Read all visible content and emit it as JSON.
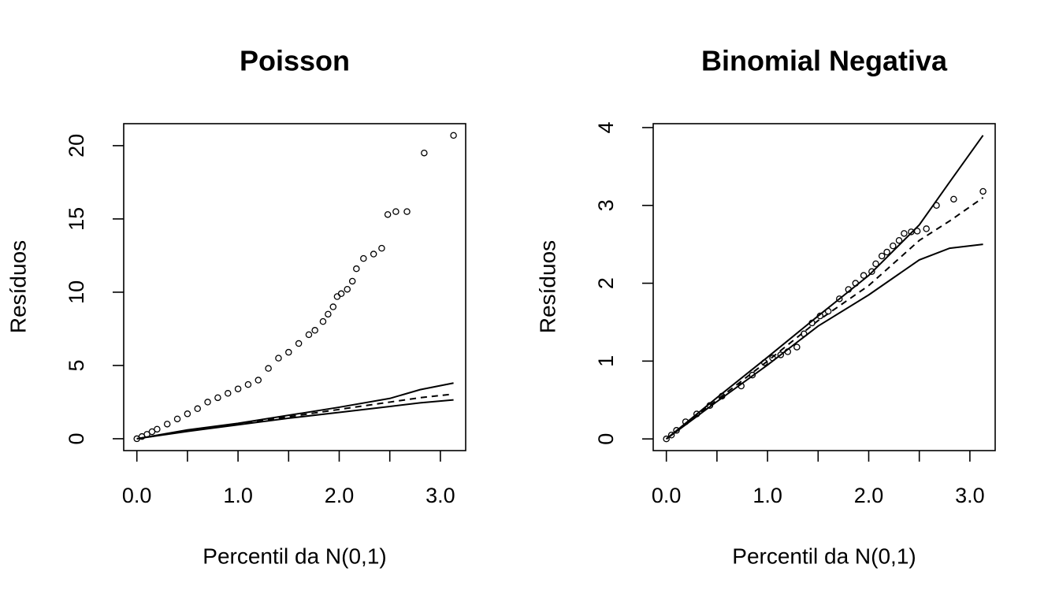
{
  "chart_data": [
    {
      "type": "scatter",
      "title": "Poisson",
      "x_label": "Percentil da N(0,1)",
      "y_label": "Resíduos",
      "color": "#000000",
      "xlim": [
        -0.13,
        3.25
      ],
      "ylim": [
        -0.81,
        21.5
      ],
      "xticks": [
        {
          "value": 0,
          "label": "0.0"
        },
        {
          "value": 0.5,
          "label": null
        },
        {
          "value": 1,
          "label": "1.0"
        },
        {
          "value": 1.5,
          "label": null
        },
        {
          "value": 2,
          "label": "2.0"
        },
        {
          "value": 2.5,
          "label": null
        },
        {
          "value": 3,
          "label": "3.0"
        }
      ],
      "yticks": [
        0,
        5,
        10,
        15,
        20
      ],
      "series": [
        {
          "kind": "points",
          "x": [
            0.0,
            0.05,
            0.1,
            0.15,
            0.2,
            0.3,
            0.4,
            0.5,
            0.6,
            0.7,
            0.8,
            0.9,
            1.0,
            1.1,
            1.2,
            1.3,
            1.4,
            1.5,
            1.6,
            1.7,
            1.76,
            1.84,
            1.89,
            1.94,
            1.98,
            2.02,
            2.08,
            2.13,
            2.17,
            2.24,
            2.34,
            2.42,
            2.48,
            2.56,
            2.67,
            2.84,
            3.13
          ],
          "values": [
            0.0,
            0.15,
            0.3,
            0.48,
            0.65,
            1.0,
            1.35,
            1.7,
            2.05,
            2.5,
            2.8,
            3.1,
            3.4,
            3.7,
            4.0,
            4.8,
            5.5,
            5.9,
            6.5,
            7.1,
            7.4,
            8.0,
            8.5,
            9.0,
            9.7,
            9.9,
            10.2,
            10.75,
            11.6,
            12.3,
            12.6,
            13.0,
            15.3,
            15.5,
            15.5,
            19.5,
            20.7
          ]
        },
        {
          "kind": "line",
          "dashed": false,
          "x": [
            0,
            0.5,
            1.0,
            1.5,
            2.0,
            2.5,
            2.8,
            3.13
          ],
          "values": [
            0,
            0.5,
            0.95,
            1.4,
            1.8,
            2.2,
            2.45,
            2.65
          ]
        },
        {
          "kind": "line",
          "dashed": true,
          "x": [
            0,
            0.5,
            1.0,
            1.5,
            2.0,
            2.5,
            2.8,
            3.13
          ],
          "values": [
            0,
            0.55,
            1.0,
            1.5,
            2.0,
            2.5,
            2.8,
            3.05
          ]
        },
        {
          "kind": "line",
          "dashed": false,
          "x": [
            0,
            0.5,
            1.0,
            1.5,
            2.0,
            2.5,
            2.8,
            3.13
          ],
          "values": [
            0,
            0.6,
            1.05,
            1.6,
            2.15,
            2.75,
            3.35,
            3.8
          ]
        }
      ]
    },
    {
      "type": "scatter",
      "title": "Binomial Negativa",
      "x_label": "Percentil da N(0,1)",
      "y_label": "Resíduos",
      "color": "#000000",
      "xlim": [
        -0.13,
        3.25
      ],
      "ylim": [
        -0.15,
        4.05
      ],
      "xticks": [
        {
          "value": 0,
          "label": "0.0"
        },
        {
          "value": 0.5,
          "label": null
        },
        {
          "value": 1,
          "label": "1.0"
        },
        {
          "value": 1.5,
          "label": null
        },
        {
          "value": 2,
          "label": "2.0"
        },
        {
          "value": 2.5,
          "label": null
        },
        {
          "value": 3,
          "label": "3.0"
        }
      ],
      "yticks": [
        0,
        1,
        2,
        3,
        4
      ],
      "series": [
        {
          "kind": "points",
          "x": [
            0,
            0.05,
            0.1,
            0.19,
            0.3,
            0.43,
            0.55,
            0.74,
            0.85,
            0.97,
            1.05,
            1.13,
            1.2,
            1.29,
            1.36,
            1.44,
            1.52,
            1.6,
            1.71,
            1.8,
            1.87,
            1.95,
            2.03,
            2.07,
            2.13,
            2.18,
            2.24,
            2.3,
            2.35,
            2.42,
            2.48,
            2.57,
            2.67,
            2.84,
            3.13
          ],
          "values": [
            0,
            0.05,
            0.11,
            0.22,
            0.32,
            0.43,
            0.55,
            0.68,
            0.82,
            0.98,
            1.04,
            1.08,
            1.12,
            1.18,
            1.35,
            1.49,
            1.58,
            1.64,
            1.8,
            1.92,
            2.0,
            2.1,
            2.15,
            2.25,
            2.35,
            2.4,
            2.48,
            2.55,
            2.64,
            2.66,
            2.67,
            2.7,
            3.0,
            3.08,
            3.18
          ]
        },
        {
          "kind": "line",
          "dashed": false,
          "x": [
            0,
            0.5,
            1.0,
            1.5,
            2.0,
            2.5,
            2.8,
            3.13
          ],
          "values": [
            0,
            0.48,
            0.95,
            1.45,
            1.85,
            2.3,
            2.45,
            2.5
          ]
        },
        {
          "kind": "line",
          "dashed": true,
          "x": [
            0,
            0.5,
            1.0,
            1.5,
            2.0,
            2.5,
            2.8,
            3.13
          ],
          "values": [
            0,
            0.5,
            1.0,
            1.52,
            1.97,
            2.55,
            2.8,
            3.1
          ]
        },
        {
          "kind": "line",
          "dashed": false,
          "x": [
            0,
            0.5,
            1.0,
            1.5,
            2.0,
            2.5,
            2.8,
            3.13
          ],
          "values": [
            0,
            0.53,
            1.05,
            1.58,
            2.1,
            2.75,
            3.3,
            3.9
          ]
        }
      ]
    }
  ]
}
